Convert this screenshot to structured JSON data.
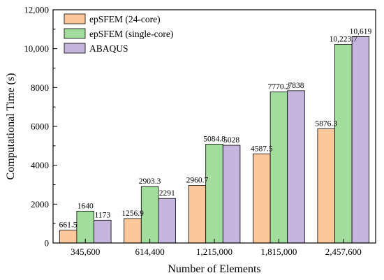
{
  "chart_data": {
    "type": "bar",
    "xlabel": "Number of Elements",
    "ylabel": "Computational Time (s)",
    "categories": [
      "345,600",
      "614,400",
      "1,215,000",
      "1,815,000",
      "2,457,600"
    ],
    "ylim": [
      0,
      12000
    ],
    "yticks": [
      0,
      2000,
      4000,
      6000,
      8000,
      10000,
      12000
    ],
    "ytick_labels": [
      "0",
      "2000",
      "4000",
      "6000",
      "8000",
      "10,000",
      "12,000"
    ],
    "legend_position": "top-left",
    "grid": false,
    "series": [
      {
        "name": "epSFEM (24-core)",
        "color": "#FCC79B",
        "values": [
          661.5,
          1256.9,
          2960.7,
          4587.5,
          5876.3
        ],
        "labels": [
          "661.5",
          "1256.9",
          "2960.7",
          "4587.5",
          "5876.3"
        ]
      },
      {
        "name": "epSFEM (single-core)",
        "color": "#A3DD9E",
        "values": [
          1640,
          2903.3,
          5084.8,
          7770.2,
          10223.7
        ],
        "labels": [
          "1640",
          "2903.3",
          "5084.8",
          "7770.2",
          "10,223.7"
        ]
      },
      {
        "name": "ABAQUS",
        "color": "#C5B5DD",
        "values": [
          1173,
          2291,
          5028,
          7838,
          10619
        ],
        "labels": [
          "1173",
          "2291",
          "5028",
          "7838",
          "10,619"
        ]
      }
    ]
  }
}
